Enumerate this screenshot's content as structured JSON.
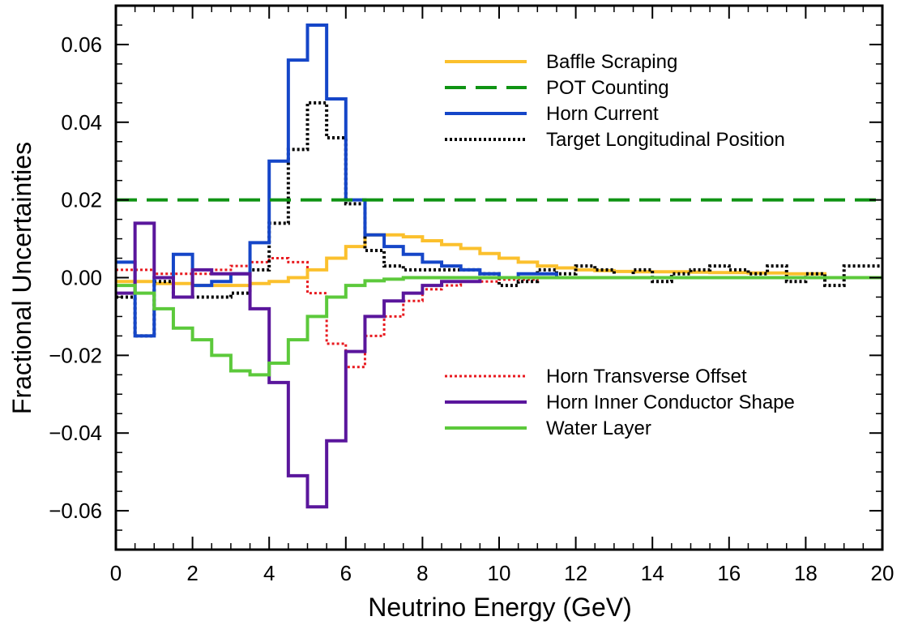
{
  "chart_data": {
    "type": "line",
    "step": true,
    "xlabel": "Neutrino Energy (GeV)",
    "ylabel": "Fractional Uncertainties",
    "xlim": [
      0,
      20
    ],
    "ylim": [
      -0.07,
      0.07
    ],
    "x_ticks": [
      0,
      2,
      4,
      6,
      8,
      10,
      12,
      14,
      16,
      18,
      20
    ],
    "x_tick_labels": [
      "0",
      "2",
      "4",
      "6",
      "8",
      "10",
      "12",
      "14",
      "16",
      "18",
      "20"
    ],
    "y_ticks": [
      -0.06,
      -0.04,
      -0.02,
      0.0,
      0.02,
      0.04,
      0.06
    ],
    "y_tick_labels": [
      "−0.06",
      "−0.04",
      "−0.02",
      "0.00",
      "0.02",
      "0.04",
      "0.06"
    ],
    "bin_edges": [
      0,
      0.5,
      1,
      1.5,
      2,
      2.5,
      3,
      3.5,
      4,
      4.5,
      5,
      5.5,
      6,
      6.5,
      7,
      7.5,
      8,
      8.5,
      9,
      9.5,
      10,
      10.5,
      11,
      11.5,
      12,
      12.5,
      13,
      13.5,
      14,
      14.5,
      15,
      15.5,
      16,
      16.5,
      17,
      17.5,
      18,
      18.5,
      19,
      19.5,
      20
    ],
    "legend_upper": [
      "Baffle Scraping",
      "POT Counting",
      "Horn Current",
      "Target Longitudinal Position"
    ],
    "legend_lower": [
      "Horn Transverse Offset",
      "Horn Inner Conductor Shape",
      "Water Layer"
    ],
    "series": [
      {
        "name": "Horn Transverse Offset",
        "color": "#e8191f",
        "dash": "dotted",
        "width": 3,
        "values": [
          0.002,
          0.002,
          0.001,
          0.001,
          0.001,
          0.002,
          0.003,
          0.004,
          0.005,
          0.004,
          -0.004,
          -0.017,
          -0.023,
          -0.015,
          -0.01,
          -0.006,
          -0.003,
          -0.002,
          -0.001,
          -0.001,
          -0.0005,
          -0.0005,
          0,
          0,
          0,
          0,
          0,
          0,
          0,
          0,
          0,
          0,
          0,
          0,
          0,
          0,
          0,
          0,
          0,
          0
        ]
      },
      {
        "name": "Baffle Scraping",
        "color": "#fbc02d",
        "dash": "solid",
        "width": 4,
        "values": [
          -0.001,
          -0.001,
          -0.0015,
          -0.0015,
          -0.002,
          -0.002,
          -0.002,
          -0.0015,
          -0.001,
          0,
          0.002,
          0.005,
          0.008,
          0.011,
          0.011,
          0.0105,
          0.0095,
          0.0085,
          0.0075,
          0.0062,
          0.005,
          0.004,
          0.003,
          0.0025,
          0.002,
          0.0018,
          0.0016,
          0.0015,
          0.0015,
          0.0015,
          0.0014,
          0.0013,
          0.0013,
          0.0012,
          0.0012,
          0.001,
          0.001,
          0.0,
          0.0,
          0.0
        ]
      },
      {
        "name": "Target Longitudinal Position",
        "color": "#000000",
        "dash": "dotted",
        "width": 4,
        "values": [
          -0.005,
          -0.015,
          -0.001,
          -0.005,
          -0.005,
          -0.005,
          -0.004,
          0.002,
          0.014,
          0.033,
          0.045,
          0.036,
          0.019,
          0.007,
          0.003,
          0.002,
          0.002,
          0.002,
          0.002,
          0.001,
          -0.002,
          -0.001,
          0.002,
          0.001,
          0.003,
          0.002,
          0.0,
          0.002,
          -0.001,
          0.001,
          0.002,
          0.003,
          0.002,
          0.001,
          0.003,
          -0.001,
          0.001,
          -0.002,
          0.003,
          0.003
        ]
      },
      {
        "name": "Horn Current",
        "color": "#1546c8",
        "dash": "solid",
        "width": 4,
        "values": [
          0.004,
          -0.015,
          0.0,
          0.006,
          -0.002,
          -0.001,
          0.001,
          0.009,
          0.03,
          0.056,
          0.065,
          0.046,
          0.02,
          0.011,
          0.008,
          0.006,
          0.004,
          0.003,
          0.002,
          0.001,
          0.0,
          0.001,
          0.001,
          0.0,
          0,
          0,
          0,
          0,
          0,
          0,
          0,
          0,
          0,
          0,
          0,
          0,
          0,
          0,
          0,
          0
        ]
      },
      {
        "name": "Horn Inner Conductor Shape",
        "color": "#5a169c",
        "dash": "solid",
        "width": 4,
        "values": [
          -0.004,
          0.014,
          0.0,
          -0.005,
          0.002,
          0.001,
          0.001,
          -0.008,
          -0.027,
          -0.051,
          -0.059,
          -0.042,
          -0.019,
          -0.01,
          -0.006,
          -0.004,
          -0.002,
          -0.001,
          -0.001,
          0.0,
          0,
          0,
          0,
          0,
          0,
          0,
          0,
          0,
          0,
          0,
          0,
          0,
          0,
          0,
          0,
          0,
          0,
          0,
          0,
          0
        ]
      },
      {
        "name": "Water Layer",
        "color": "#5cc93b",
        "dash": "solid",
        "width": 4,
        "values": [
          -0.002,
          -0.004,
          -0.008,
          -0.013,
          -0.016,
          -0.02,
          -0.024,
          -0.025,
          -0.022,
          -0.016,
          -0.01,
          -0.005,
          -0.002,
          -0.0008,
          -0.0004,
          0,
          0,
          0,
          0,
          0,
          0,
          0,
          0,
          0,
          0,
          0,
          0,
          0,
          0,
          0,
          0,
          0,
          0,
          0,
          0,
          0,
          0,
          0,
          0,
          0
        ]
      },
      {
        "name": "POT Counting",
        "color": "#0f9313",
        "dash": "dashed",
        "width": 4,
        "constant": 0.02
      }
    ]
  }
}
